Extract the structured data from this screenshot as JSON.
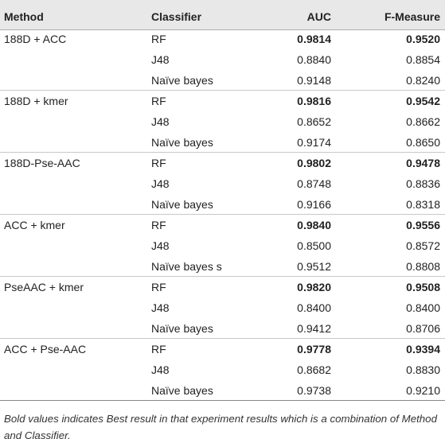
{
  "table": {
    "header": [
      "Method",
      "Classifier",
      "AUC",
      "F-Measure"
    ],
    "groups": [
      {
        "method": "188D + ACC",
        "rows": [
          {
            "classifier": "RF",
            "auc": "0.9814",
            "f_measure": "0.9520",
            "best": true
          },
          {
            "classifier": "J48",
            "auc": "0.8840",
            "f_measure": "0.8854"
          },
          {
            "classifier": "Naïve bayes",
            "auc": "0.9148",
            "f_measure": "0.8240"
          }
        ]
      },
      {
        "method": "188D + kmer",
        "rows": [
          {
            "classifier": "RF",
            "auc": "0.9816",
            "f_measure": "0.9542",
            "best": true
          },
          {
            "classifier": "J48",
            "auc": "0.8652",
            "f_measure": "0.8662"
          },
          {
            "classifier": "Naïve bayes",
            "auc": "0.9174",
            "f_measure": "0.8650"
          }
        ]
      },
      {
        "method": "188D-Pse-AAC",
        "rows": [
          {
            "classifier": "RF",
            "auc": "0.9802",
            "f_measure": "0.9478",
            "best": true
          },
          {
            "classifier": "J48",
            "auc": "0.8748",
            "f_measure": "0.8836"
          },
          {
            "classifier": "Naïve bayes",
            "auc": "0.9166",
            "f_measure": "0.8318"
          }
        ]
      },
      {
        "method": "ACC + kmer",
        "rows": [
          {
            "classifier": "RF",
            "auc": "0.9840",
            "f_measure": "0.9556",
            "best": true
          },
          {
            "classifier": "J48",
            "auc": "0.8500",
            "f_measure": "0.8572"
          },
          {
            "classifier": "Naïve bayes s",
            "auc": "0.9512",
            "f_measure": "0.8808"
          }
        ]
      },
      {
        "method": "PseAAC + kmer",
        "rows": [
          {
            "classifier": "RF",
            "auc": "0.9820",
            "f_measure": "0.9508",
            "best": true
          },
          {
            "classifier": "J48",
            "auc": "0.8400",
            "f_measure": "0.8400"
          },
          {
            "classifier": "Naïve bayes",
            "auc": "0.9412",
            "f_measure": "0.8706"
          }
        ]
      },
      {
        "method": "ACC + Pse-AAC",
        "rows": [
          {
            "classifier": "RF",
            "auc": "0.9778",
            "f_measure": "0.9394",
            "best": true
          },
          {
            "classifier": "J48",
            "auc": "0.8682",
            "f_measure": "0.8830"
          },
          {
            "classifier": "Naïve bayes",
            "auc": "0.9738",
            "f_measure": "0.9210"
          }
        ]
      }
    ],
    "footnote": "Bold values indicates Best result in that experiment results which is a combination of Method and Classifier."
  }
}
